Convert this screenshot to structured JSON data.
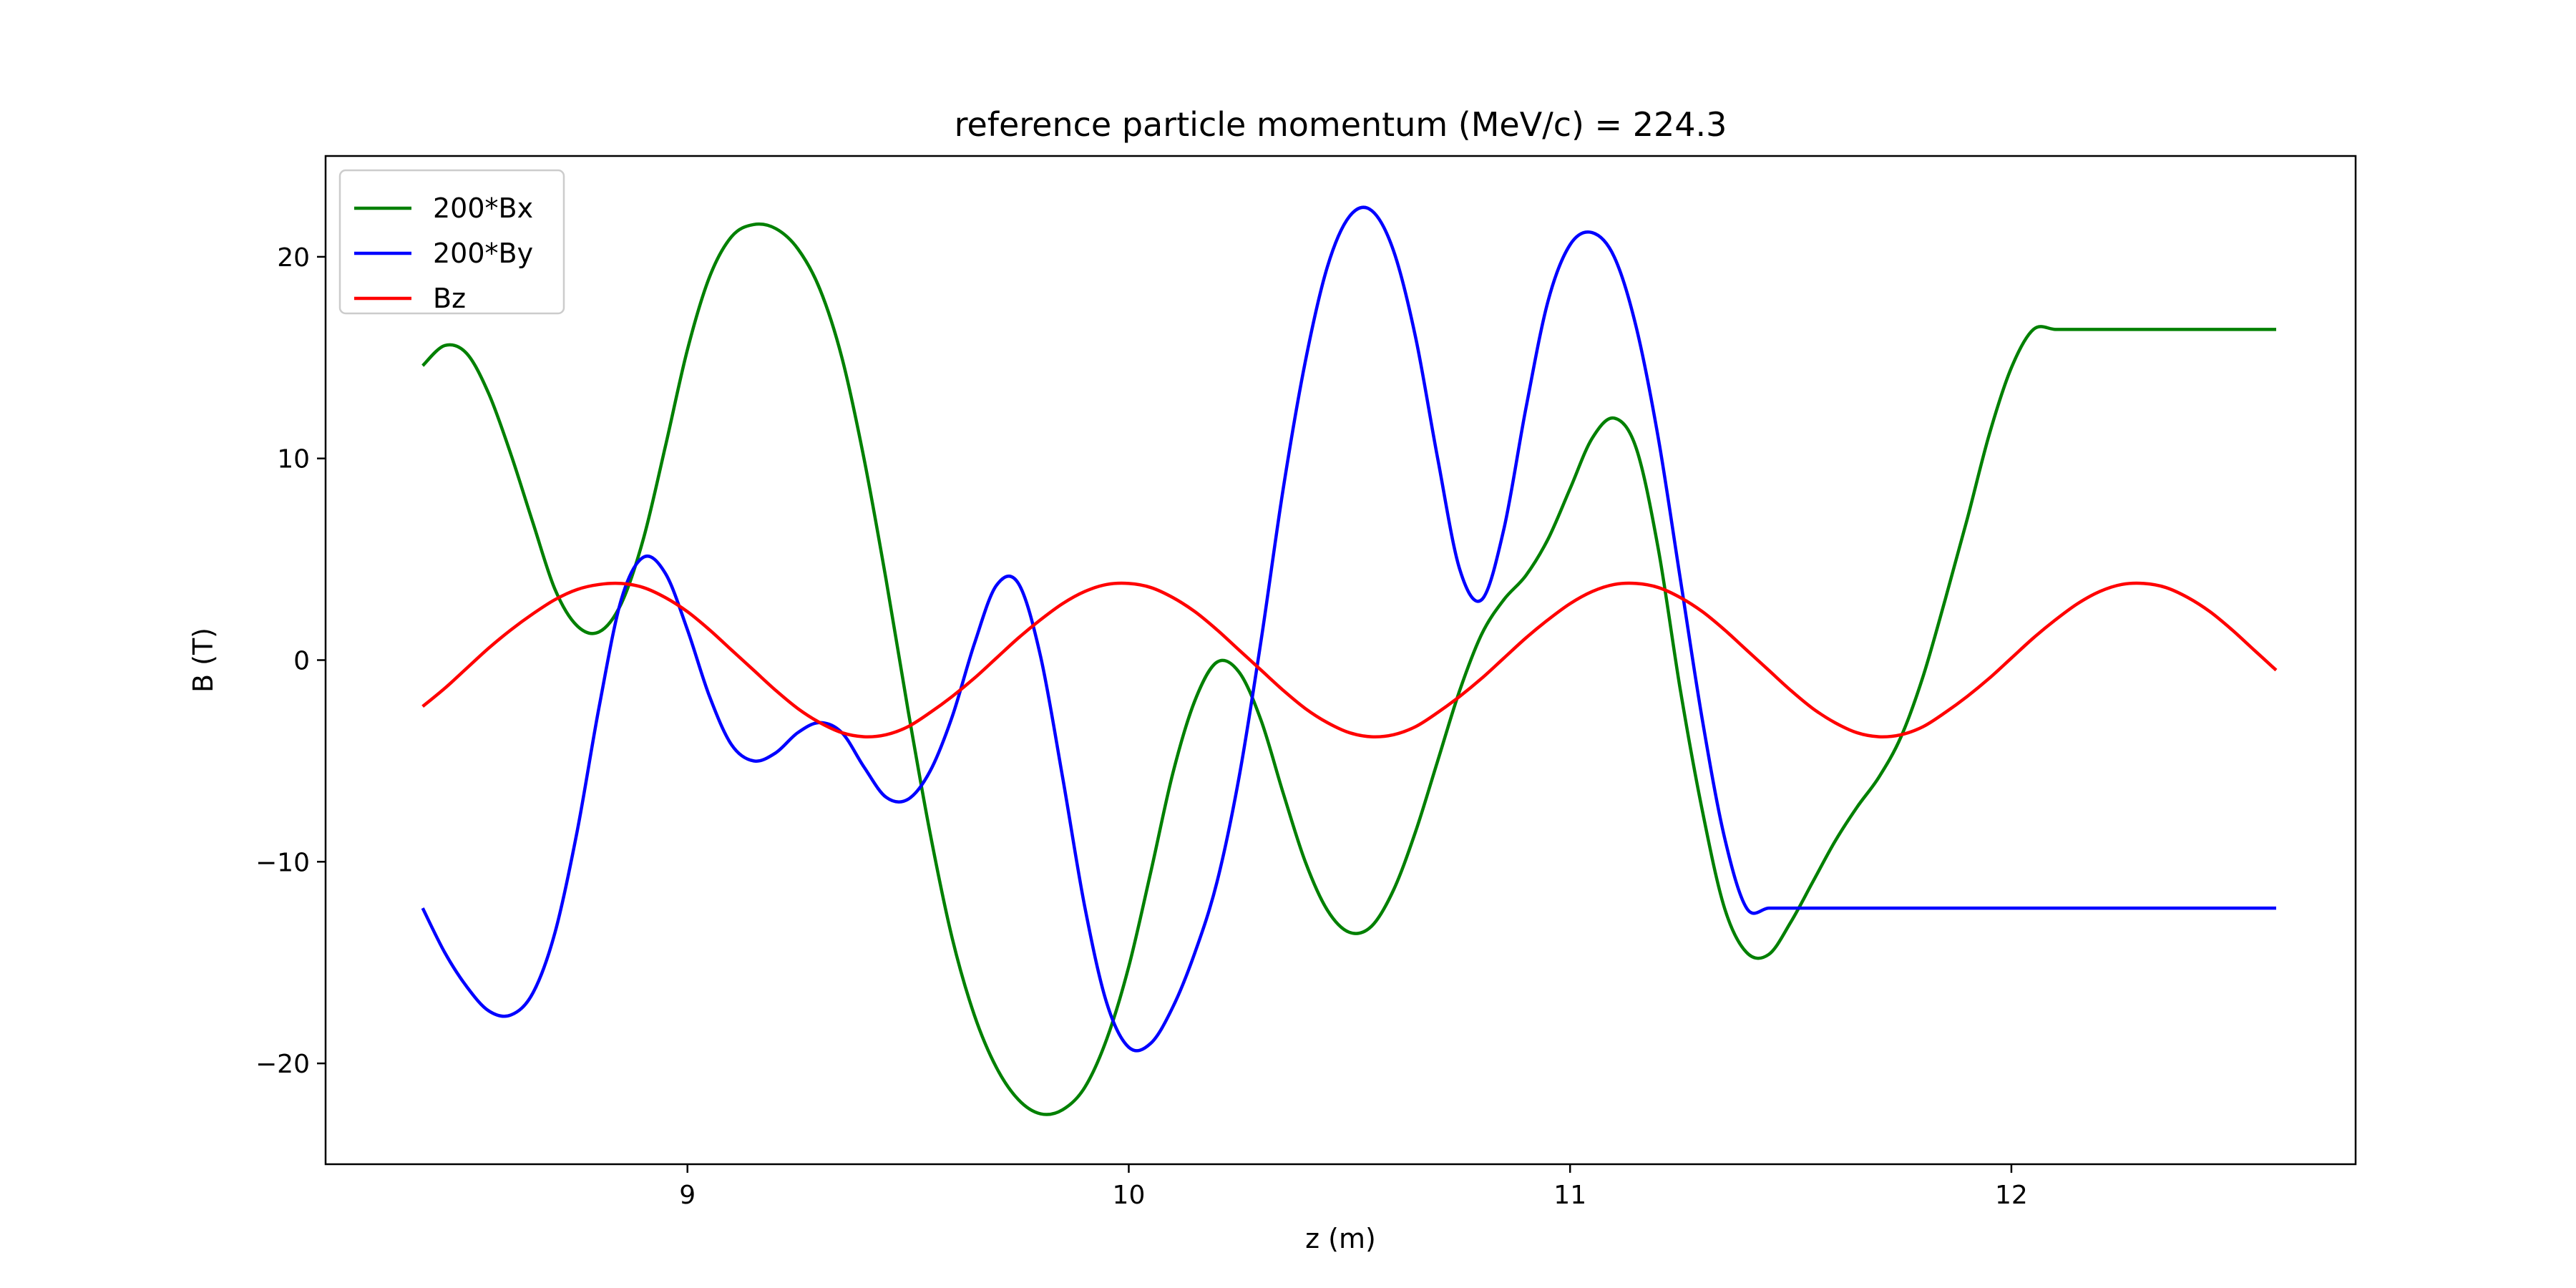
{
  "chart_data": {
    "type": "line",
    "title": "reference particle momentum (MeV/c) = 224.3",
    "xlabel": "z (m)",
    "ylabel": "B (T)",
    "xlim": [
      8.18,
      12.78
    ],
    "ylim": [
      -25,
      25
    ],
    "xticks": [
      9,
      10,
      11,
      12
    ],
    "yticks": [
      -20,
      -10,
      0,
      10,
      20
    ],
    "xtick_labels": [
      "9",
      "10",
      "11",
      "12"
    ],
    "ytick_labels": [
      "−20",
      "−10",
      "0",
      "10",
      "20"
    ],
    "legend": {
      "placement": "top-left"
    },
    "grid": false,
    "series": [
      {
        "name": "200*Bx",
        "color": "#008000",
        "x": [
          8.4,
          8.45,
          8.5,
          8.55,
          8.6,
          8.65,
          8.7,
          8.75,
          8.8,
          8.85,
          8.9,
          8.95,
          9.0,
          9.05,
          9.1,
          9.15,
          9.2,
          9.25,
          9.3,
          9.35,
          9.4,
          9.45,
          9.5,
          9.55,
          9.6,
          9.65,
          9.7,
          9.75,
          9.8,
          9.85,
          9.9,
          9.95,
          10.0,
          10.05,
          10.1,
          10.15,
          10.2,
          10.25,
          10.3,
          10.35,
          10.4,
          10.45,
          10.5,
          10.55,
          10.6,
          10.65,
          10.7,
          10.75,
          10.8,
          10.85,
          10.9,
          10.95,
          11.0,
          11.05,
          11.1,
          11.15,
          11.2,
          11.25,
          11.3,
          11.35,
          11.4,
          11.45,
          11.5,
          11.55,
          11.6,
          11.65,
          11.7,
          11.75,
          11.8,
          11.85,
          11.9,
          11.95,
          12.0,
          12.05,
          12.1,
          12.15,
          12.2,
          12.25,
          12.3,
          12.35,
          12.4,
          12.45,
          12.5,
          12.55,
          12.6
        ],
        "y": [
          14.6,
          15.6,
          15.2,
          13.2,
          10.2,
          6.8,
          3.5,
          1.7,
          1.4,
          2.8,
          6.0,
          10.6,
          15.4,
          19.0,
          21.0,
          21.6,
          21.4,
          20.4,
          18.4,
          15.0,
          10.0,
          4.0,
          -2.5,
          -8.6,
          -13.8,
          -17.6,
          -20.2,
          -21.8,
          -22.5,
          -22.3,
          -21.2,
          -18.8,
          -15.2,
          -10.5,
          -5.6,
          -2.0,
          -0.1,
          -0.6,
          -3.0,
          -6.6,
          -10.0,
          -12.4,
          -13.5,
          -13.2,
          -11.4,
          -8.5,
          -5.0,
          -1.5,
          1.3,
          3.0,
          4.2,
          6.0,
          8.5,
          11.0,
          12.0,
          10.5,
          5.5,
          -1.5,
          -7.5,
          -12.3,
          -14.5,
          -14.6,
          -13.0,
          -11.0,
          -9.0,
          -7.3,
          -5.8,
          -3.8,
          -0.8,
          3.0,
          7.0,
          11.2,
          14.5,
          16.4,
          16.4,
          16.4,
          16.4,
          16.4,
          16.4,
          16.4,
          16.4,
          16.4,
          16.4,
          16.4,
          16.4
        ]
      },
      {
        "name": "200*By",
        "color": "#0000ff",
        "x": [
          8.4,
          8.45,
          8.5,
          8.55,
          8.6,
          8.65,
          8.7,
          8.75,
          8.8,
          8.85,
          8.9,
          8.95,
          9.0,
          9.05,
          9.1,
          9.15,
          9.2,
          9.25,
          9.3,
          9.35,
          9.4,
          9.45,
          9.5,
          9.55,
          9.6,
          9.65,
          9.7,
          9.75,
          9.8,
          9.85,
          9.9,
          9.95,
          10.0,
          10.05,
          10.1,
          10.15,
          10.2,
          10.25,
          10.3,
          10.35,
          10.4,
          10.45,
          10.5,
          10.55,
          10.6,
          10.65,
          10.7,
          10.75,
          10.8,
          10.85,
          10.9,
          10.95,
          11.0,
          11.05,
          11.1,
          11.15,
          11.2,
          11.25,
          11.3,
          11.35,
          11.4,
          11.45,
          11.5,
          11.55,
          11.6,
          11.65,
          11.7,
          11.75,
          11.8,
          11.85,
          11.9,
          11.95,
          12.0,
          12.05,
          12.1,
          12.15,
          12.2,
          12.25,
          12.3,
          12.35,
          12.4,
          12.45,
          12.5,
          12.55,
          12.6
        ],
        "y": [
          -12.3,
          -14.5,
          -16.2,
          -17.4,
          -17.6,
          -16.5,
          -13.5,
          -8.5,
          -2.3,
          3.0,
          5.1,
          4.3,
          1.5,
          -1.8,
          -4.2,
          -5.0,
          -4.6,
          -3.6,
          -3.1,
          -3.6,
          -5.3,
          -6.8,
          -6.9,
          -5.5,
          -2.8,
          0.8,
          3.7,
          3.8,
          0.2,
          -5.8,
          -12.2,
          -17.0,
          -19.2,
          -19.0,
          -17.2,
          -14.5,
          -11.0,
          -5.8,
          1.0,
          8.5,
          14.8,
          19.5,
          22.0,
          22.3,
          20.3,
          16.0,
          10.0,
          4.5,
          3.0,
          6.5,
          12.5,
          17.8,
          20.6,
          21.2,
          20.0,
          16.5,
          11.0,
          4.0,
          -3.0,
          -8.8,
          -12.3,
          -12.3,
          -12.3,
          -12.3,
          -12.3,
          -12.3,
          -12.3,
          -12.3,
          -12.3,
          -12.3,
          -12.3,
          -12.3,
          -12.3,
          -12.3,
          -12.3,
          -12.3,
          -12.3,
          -12.3,
          -12.3,
          -12.3,
          -12.3,
          -12.3,
          -12.3,
          -12.3,
          -12.3
        ]
      },
      {
        "name": "Bz",
        "color": "#ff0000",
        "x": [
          8.4,
          8.45,
          8.5,
          8.55,
          8.6,
          8.65,
          8.7,
          8.75,
          8.8,
          8.85,
          8.9,
          8.95,
          9.0,
          9.05,
          9.1,
          9.15,
          9.2,
          9.25,
          9.3,
          9.35,
          9.4,
          9.45,
          9.5,
          9.55,
          9.6,
          9.65,
          9.7,
          9.75,
          9.8,
          9.85,
          9.9,
          9.95,
          10.0,
          10.05,
          10.1,
          10.15,
          10.2,
          10.25,
          10.3,
          10.35,
          10.4,
          10.45,
          10.5,
          10.55,
          10.6,
          10.65,
          10.7,
          10.75,
          10.8,
          10.85,
          10.9,
          10.95,
          11.0,
          11.05,
          11.1,
          11.15,
          11.2,
          11.25,
          11.3,
          11.35,
          11.4,
          11.45,
          11.5,
          11.55,
          11.6,
          11.65,
          11.7,
          11.75,
          11.8,
          11.85,
          11.9,
          11.95,
          12.0,
          12.05,
          12.1,
          12.15,
          12.2,
          12.25,
          12.3,
          12.35,
          12.4,
          12.45,
          12.5,
          12.55,
          12.6
        ],
        "y": [
          -2.3,
          -1.4,
          -0.4,
          0.6,
          1.5,
          2.3,
          3.0,
          3.5,
          3.75,
          3.8,
          3.6,
          3.1,
          2.4,
          1.5,
          0.5,
          -0.5,
          -1.5,
          -2.4,
          -3.1,
          -3.6,
          -3.8,
          -3.7,
          -3.3,
          -2.6,
          -1.8,
          -0.9,
          0.1,
          1.1,
          2.0,
          2.8,
          3.4,
          3.75,
          3.8,
          3.6,
          3.1,
          2.4,
          1.5,
          0.5,
          -0.5,
          -1.5,
          -2.4,
          -3.1,
          -3.6,
          -3.8,
          -3.7,
          -3.3,
          -2.6,
          -1.8,
          -0.9,
          0.1,
          1.1,
          2.0,
          2.8,
          3.4,
          3.75,
          3.8,
          3.6,
          3.1,
          2.4,
          1.5,
          0.5,
          -0.5,
          -1.5,
          -2.4,
          -3.1,
          -3.6,
          -3.8,
          -3.7,
          -3.3,
          -2.6,
          -1.8,
          -0.9,
          0.1,
          1.1,
          2.0,
          2.8,
          3.4,
          3.75,
          3.8,
          3.6,
          3.1,
          2.4,
          1.5,
          0.5,
          -0.5
        ]
      }
    ]
  }
}
